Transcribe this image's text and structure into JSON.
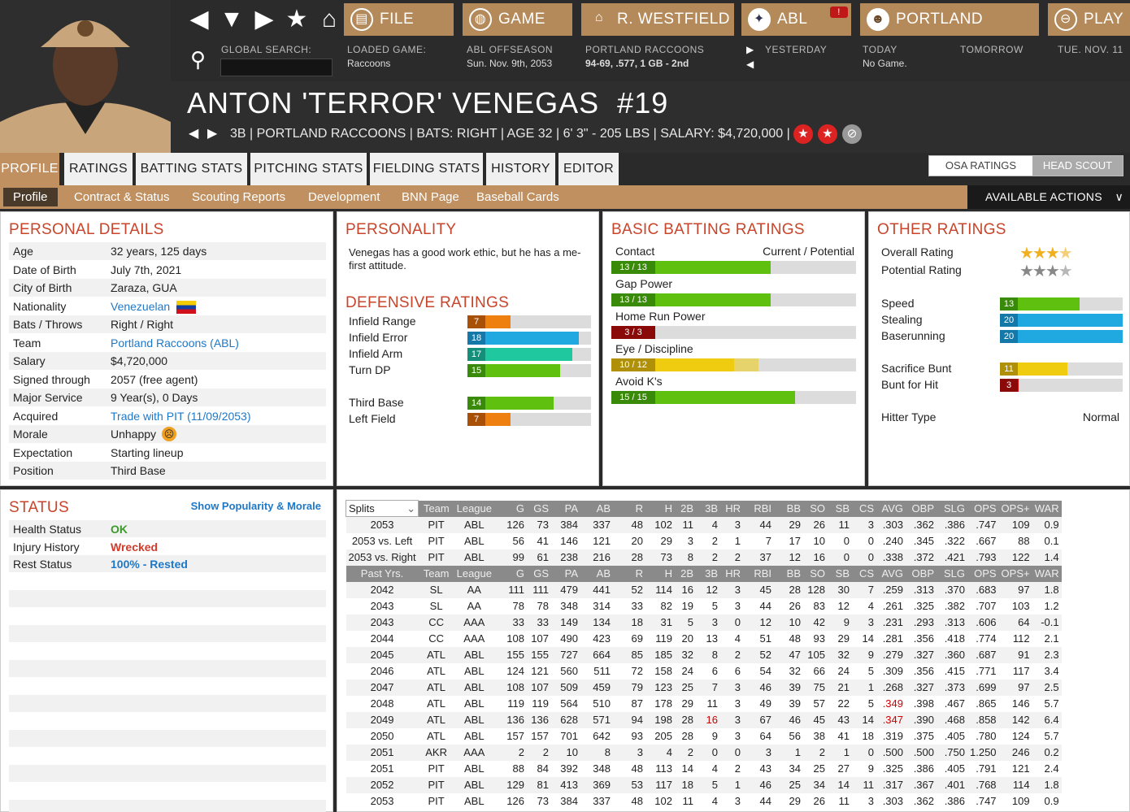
{
  "header": {
    "buttons": {
      "file": "FILE",
      "game": "GAME",
      "manager": "R. WESTFIELD",
      "league": "ABL",
      "team": "PORTLAND",
      "play": "PLAY"
    },
    "search_label": "GLOBAL SEARCH:",
    "loaded_game_label": "LOADED GAME:",
    "loaded_game_value": "Raccoons",
    "abl_status_label": "ABL OFFSEASON",
    "abl_date": "Sun. Nov. 9th, 2053",
    "team_label": "PORTLAND RACCOONS",
    "team_record": "94-69, .577, 1 GB - 2nd",
    "yesterday": "YESTERDAY",
    "today": "TODAY",
    "today_value": "No Game.",
    "tomorrow": "TOMORROW",
    "next_date": "TUE. NOV. 11"
  },
  "player": {
    "name": "ANTON 'TERROR' VENEGAS",
    "number": "#19",
    "info": "3B | PORTLAND RACCOONS  |  BATS: RIGHT  |  AGE 32  |  6' 3\" - 205 LBS  |  SALARY: $4,720,000  |"
  },
  "tabs": [
    "PROFILE",
    "RATINGS",
    "BATTING STATS",
    "PITCHING STATS",
    "FIELDING STATS",
    "HISTORY",
    "EDITOR"
  ],
  "rating_toggle": [
    "OSA RATINGS",
    "HEAD SCOUT"
  ],
  "subtabs": [
    "Profile",
    "Contract & Status",
    "Scouting Reports",
    "Development",
    "BNN Page",
    "Baseball Cards"
  ],
  "available_actions": "AVAILABLE ACTIONS",
  "personal": {
    "title": "PERSONAL DETAILS",
    "rows": [
      [
        "Age",
        "32 years, 125 days"
      ],
      [
        "Date of Birth",
        "July 7th, 2021"
      ],
      [
        "City of Birth",
        "Zaraza, GUA"
      ],
      [
        "Nationality",
        "Venezuelan"
      ],
      [
        "Bats / Throws",
        "Right / Right"
      ],
      [
        "Team",
        "Portland Raccoons (ABL)"
      ],
      [
        "Salary",
        "$4,720,000"
      ],
      [
        "Signed through",
        "2057 (free agent)"
      ],
      [
        "Major Service",
        "9 Year(s), 0 Days"
      ],
      [
        "Acquired",
        "Trade with PIT (11/09/2053)"
      ],
      [
        "Morale",
        "Unhappy"
      ],
      [
        "Expectation",
        "Starting lineup"
      ],
      [
        "Position",
        "Third Base"
      ]
    ]
  },
  "personality": {
    "title": "PERSONALITY",
    "text": "Venegas has a good work ethic, but he has a me-first attitude."
  },
  "defense": {
    "title": "DEFENSIVE RATINGS",
    "rows": [
      [
        "Infield Range",
        7
      ],
      [
        "Infield Error",
        18
      ],
      [
        "Infield Arm",
        17
      ],
      [
        "Turn DP",
        15
      ],
      [
        "Third Base",
        14
      ],
      [
        "Left Field",
        7
      ]
    ]
  },
  "batting": {
    "title": "BASIC BATTING RATINGS",
    "header_left": "Contact",
    "header_right": "Current / Potential",
    "rows": [
      [
        "Contact",
        "13 / 13",
        13,
        13
      ],
      [
        "Gap Power",
        "13 / 13",
        13,
        13
      ],
      [
        "Home Run Power",
        "3 / 3",
        3,
        3
      ],
      [
        "Eye / Discipline",
        "10 / 12",
        10,
        12
      ],
      [
        "Avoid K's",
        "15 / 15",
        15,
        15
      ]
    ]
  },
  "other": {
    "title": "OTHER RATINGS",
    "overall_label": "Overall Rating",
    "overall_stars": 3.5,
    "potential_label": "Potential Rating",
    "potential_stars": 3.5,
    "bars": [
      [
        "Speed",
        13
      ],
      [
        "Stealing",
        20
      ],
      [
        "Baserunning",
        20
      ],
      [
        "Sacrifice Bunt",
        11
      ],
      [
        "Bunt for Hit",
        3
      ]
    ],
    "hitter_type_label": "Hitter Type",
    "hitter_type": "Normal"
  },
  "status": {
    "title": "STATUS",
    "link": "Show Popularity & Morale",
    "rows": [
      [
        "Health Status",
        "OK"
      ],
      [
        "Injury History",
        "Wrecked"
      ],
      [
        "Rest Status",
        "100% - Rested"
      ]
    ]
  },
  "splits_header": [
    "Splits",
    "Team",
    "League",
    "G",
    "GS",
    "PA",
    "AB",
    "R",
    "H",
    "2B",
    "3B",
    "HR",
    "RBI",
    "BB",
    "SO",
    "SB",
    "CS",
    "AVG",
    "OBP",
    "SLG",
    "OPS",
    "OPS+",
    "WAR"
  ],
  "splits_rows": [
    [
      "2053",
      "PIT",
      "ABL",
      "126",
      "73",
      "384",
      "337",
      "48",
      "102",
      "11",
      "4",
      "3",
      "44",
      "29",
      "26",
      "11",
      "3",
      ".303",
      ".362",
      ".386",
      ".747",
      "109",
      "0.9"
    ],
    [
      "2053 vs. Left",
      "PIT",
      "ABL",
      "56",
      "41",
      "146",
      "121",
      "20",
      "29",
      "3",
      "2",
      "1",
      "7",
      "17",
      "10",
      "0",
      "0",
      ".240",
      ".345",
      ".322",
      ".667",
      "88",
      "0.1"
    ],
    [
      "2053 vs. Right",
      "PIT",
      "ABL",
      "99",
      "61",
      "238",
      "216",
      "28",
      "73",
      "8",
      "2",
      "2",
      "37",
      "12",
      "16",
      "0",
      "0",
      ".338",
      ".372",
      ".421",
      ".793",
      "122",
      "1.4"
    ]
  ],
  "past_header": [
    "Past Yrs.",
    "Team",
    "League",
    "G",
    "GS",
    "PA",
    "AB",
    "R",
    "H",
    "2B",
    "3B",
    "HR",
    "RBI",
    "BB",
    "SO",
    "SB",
    "CS",
    "AVG",
    "OBP",
    "SLG",
    "OPS",
    "OPS+",
    "WAR"
  ],
  "past_rows": [
    [
      "2042",
      "SL",
      "AA",
      "111",
      "111",
      "479",
      "441",
      "52",
      "114",
      "16",
      "12",
      "3",
      "45",
      "28",
      "128",
      "30",
      "7",
      ".259",
      ".313",
      ".370",
      ".683",
      "97",
      "1.8"
    ],
    [
      "2043",
      "SL",
      "AA",
      "78",
      "78",
      "348",
      "314",
      "33",
      "82",
      "19",
      "5",
      "3",
      "44",
      "26",
      "83",
      "12",
      "4",
      ".261",
      ".325",
      ".382",
      ".707",
      "103",
      "1.2"
    ],
    [
      "2043",
      "CC",
      "AAA",
      "33",
      "33",
      "149",
      "134",
      "18",
      "31",
      "5",
      "3",
      "0",
      "12",
      "10",
      "42",
      "9",
      "3",
      ".231",
      ".293",
      ".313",
      ".606",
      "64",
      "-0.1"
    ],
    [
      "2044",
      "CC",
      "AAA",
      "108",
      "107",
      "490",
      "423",
      "69",
      "119",
      "20",
      "13",
      "4",
      "51",
      "48",
      "93",
      "29",
      "14",
      ".281",
      ".356",
      ".418",
      ".774",
      "112",
      "2.1"
    ],
    [
      "2045",
      "ATL",
      "ABL",
      "155",
      "155",
      "727",
      "664",
      "85",
      "185",
      "32",
      "8",
      "2",
      "52",
      "47",
      "105",
      "32",
      "9",
      ".279",
      ".327",
      ".360",
      ".687",
      "91",
      "2.3"
    ],
    [
      "2046",
      "ATL",
      "ABL",
      "124",
      "121",
      "560",
      "511",
      "72",
      "158",
      "24",
      "6",
      "6",
      "54",
      "32",
      "66",
      "24",
      "5",
      ".309",
      ".356",
      ".415",
      ".771",
      "117",
      "3.4"
    ],
    [
      "2047",
      "ATL",
      "ABL",
      "108",
      "107",
      "509",
      "459",
      "79",
      "123",
      "25",
      "7",
      "3",
      "46",
      "39",
      "75",
      "21",
      "1",
      ".268",
      ".327",
      ".373",
      ".699",
      "97",
      "2.5"
    ],
    [
      "2048",
      "ATL",
      "ABL",
      "119",
      "119",
      "564",
      "510",
      "87",
      "178",
      "29",
      "11",
      "3",
      "49",
      "39",
      "57",
      "22",
      "5",
      ".349",
      ".398",
      ".467",
      ".865",
      "146",
      "5.7"
    ],
    [
      "2049",
      "ATL",
      "ABL",
      "136",
      "136",
      "628",
      "571",
      "94",
      "198",
      "28",
      "16",
      "3",
      "67",
      "46",
      "45",
      "43",
      "14",
      ".347",
      ".390",
      ".468",
      ".858",
      "142",
      "6.4"
    ],
    [
      "2050",
      "ATL",
      "ABL",
      "157",
      "157",
      "701",
      "642",
      "93",
      "205",
      "28",
      "9",
      "3",
      "64",
      "56",
      "38",
      "41",
      "18",
      ".319",
      ".375",
      ".405",
      ".780",
      "124",
      "5.7"
    ],
    [
      "2051",
      "AKR",
      "AAA",
      "2",
      "2",
      "10",
      "8",
      "3",
      "4",
      "2",
      "0",
      "0",
      "3",
      "1",
      "2",
      "1",
      "0",
      ".500",
      ".500",
      ".750",
      "1.250",
      "246",
      "0.2"
    ],
    [
      "2051",
      "PIT",
      "ABL",
      "88",
      "84",
      "392",
      "348",
      "48",
      "113",
      "14",
      "4",
      "2",
      "43",
      "34",
      "25",
      "27",
      "9",
      ".325",
      ".386",
      ".405",
      ".791",
      "121",
      "2.4"
    ],
    [
      "2052",
      "PIT",
      "ABL",
      "129",
      "81",
      "413",
      "369",
      "53",
      "117",
      "18",
      "5",
      "1",
      "46",
      "25",
      "34",
      "14",
      "11",
      ".317",
      ".367",
      ".401",
      ".768",
      "114",
      "1.8"
    ],
    [
      "2053",
      "PIT",
      "ABL",
      "126",
      "73",
      "384",
      "337",
      "48",
      "102",
      "11",
      "4",
      "3",
      "44",
      "29",
      "26",
      "11",
      "3",
      ".303",
      ".362",
      ".386",
      ".747",
      "109",
      "0.9"
    ]
  ],
  "highlights": [
    [
      "2048",
      17
    ],
    [
      "2049",
      10
    ],
    [
      "2049",
      17
    ]
  ],
  "colors": {
    "accent": "#c09060",
    "title": "#c8442a",
    "link": "#1e78c8",
    "ok": "#3a9a2a",
    "bad": "#d23a2a"
  }
}
